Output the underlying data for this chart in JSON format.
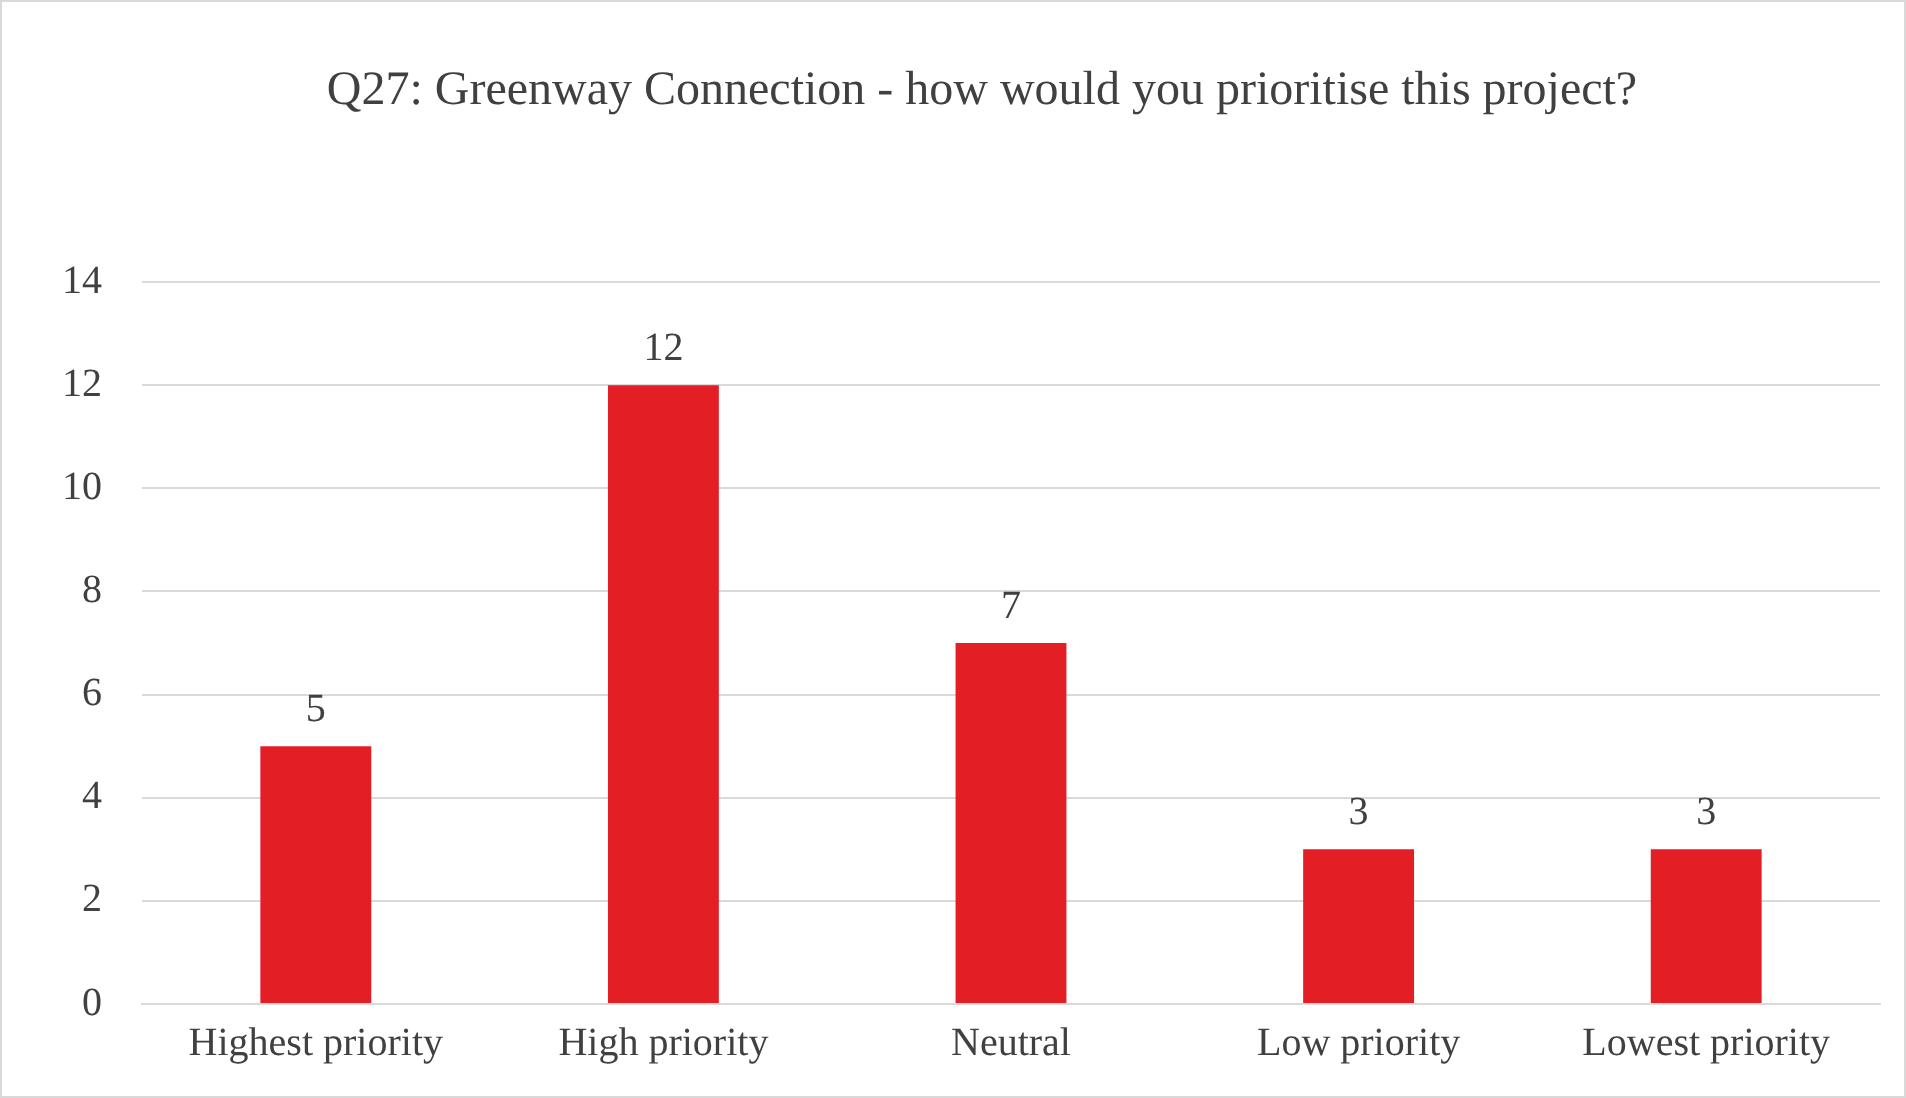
{
  "chart_data": {
    "type": "bar",
    "title": "Q27: Greenway Connection - how would you prioritise this project?",
    "categories": [
      "Highest priority",
      "High priority",
      "Neutral",
      "Low priority",
      "Lowest priority"
    ],
    "values": [
      5,
      12,
      7,
      3,
      3
    ],
    "color": "#e31e24",
    "ylim": [
      0,
      14
    ],
    "yticks": [
      0,
      2,
      4,
      6,
      8,
      10,
      12,
      14
    ],
    "grid": "y",
    "legend": false,
    "data_labels": true
  }
}
